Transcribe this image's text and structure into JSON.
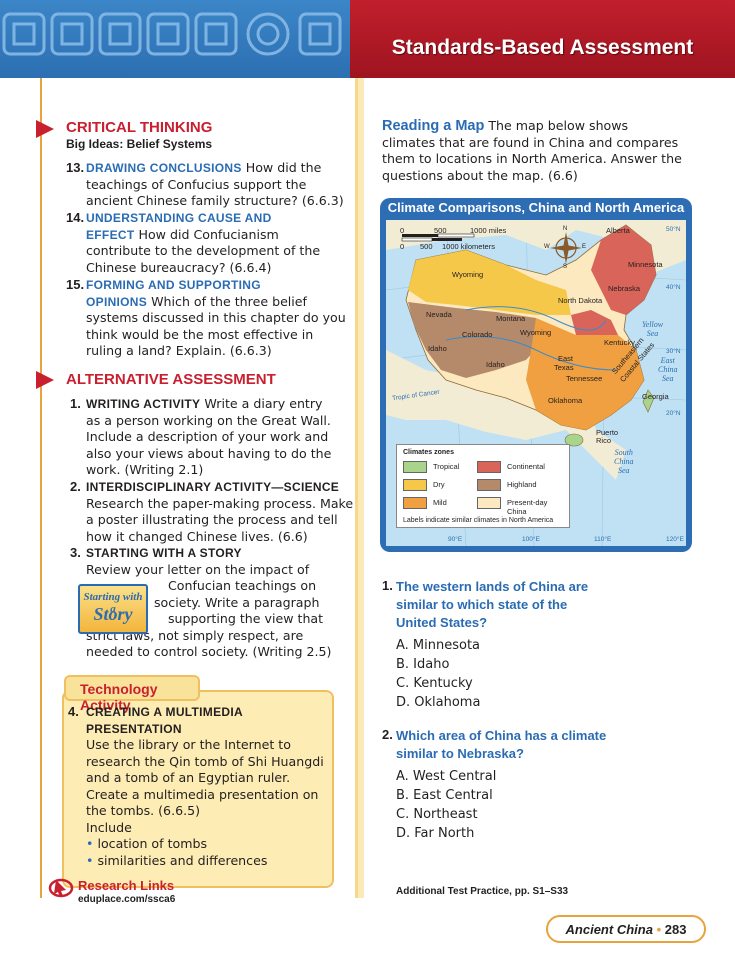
{
  "header": {
    "title": "Standards-Based Assessment"
  },
  "critical_thinking": {
    "heading": "CRITICAL THINKING",
    "subheading": "Big Ideas: Belief Systems",
    "items": [
      {
        "num": "13.",
        "keyword": "DRAWING CONCLUSIONS",
        "text_lines": [
          "How did the",
          "teachings of Confucius support the",
          "ancient Chinese family structure? (6.6.3)"
        ]
      },
      {
        "num": "14.",
        "keyword_line1": "UNDERSTANDING CAUSE AND",
        "keyword_line2": "EFFECT",
        "text_lines": [
          "How did Confucianism",
          "contribute to the development of the",
          "Chinese bureaucracy? (6.6.4)"
        ]
      },
      {
        "num": "15.",
        "keyword_line1": "FORMING AND SUPPORTING",
        "keyword_line2": "OPINIONS",
        "text_lines": [
          "Which of the three belief",
          "systems discussed in this chapter do you",
          "think would be the most effective in",
          "ruling a land? Explain. (6.6.3)"
        ]
      }
    ]
  },
  "alternative_assessment": {
    "heading": "ALTERNATIVE ASSESSMENT",
    "items": [
      {
        "num": "1.",
        "keyword": "WRITING ACTIVITY",
        "text_lines": [
          "Write a diary entry",
          "as a person working on the Great Wall.",
          "Include a description of your work and",
          "also your views about having to do the",
          "work. (Writing 2.1)"
        ]
      },
      {
        "num": "2.",
        "keyword": "INTERDISCIPLINARY ACTIVITY—SCIENCE",
        "text_lines": [
          "Research the paper-making process. Make",
          "a poster illustrating the process and tell",
          "how it changed Chinese lives. (6.6)"
        ]
      },
      {
        "num": "3.",
        "keyword": "STARTING WITH A STORY",
        "text_lines": [
          "Review your letter on the impact of",
          "Confucian teachings on",
          "society. Write a paragraph",
          "supporting the view that",
          "strict laws, not simply respect, are",
          "needed to control society. (Writing 2.5)"
        ]
      }
    ],
    "badge_small": "Starting with a",
    "badge_big": "Story"
  },
  "technology": {
    "tab": "Technology Activity",
    "num": "4.",
    "keyword_line1": "CREATING A MULTIMEDIA",
    "keyword_line2": "PRESENTATION",
    "text_lines": [
      "Use the library or the Internet to",
      "research the Qin tomb of Shi Huangdi",
      "and a tomb of an Egyptian ruler.",
      "Create a multimedia presentation on",
      "the tombs.  (6.6.5)",
      "Include"
    ],
    "bullets": [
      "location of tombs",
      "similarities and differences"
    ]
  },
  "research_links": {
    "label": "Research Links",
    "url": "eduplace.com/ssca6"
  },
  "reading_map": {
    "keyword": "Reading a Map",
    "text_lines": [
      "The map below shows",
      "climates that are found in China and compares",
      "them to locations in North America. Answer the",
      "questions about the map. (6.6)"
    ]
  },
  "map": {
    "title": "Climate Comparisons, China and North America",
    "scale_miles": [
      "0",
      "500",
      "1000 miles"
    ],
    "scale_km": [
      "0",
      "500",
      "1000 kilometers"
    ],
    "compass": [
      "N",
      "S",
      "E",
      "W"
    ],
    "labels": {
      "alberta": "Alberta",
      "minnesota": "Minnesota",
      "wyoming1": "Wyoming",
      "nebraska": "Nebraska",
      "north_dakota": "North Dakota",
      "nevada": "Nevada",
      "montana": "Montana",
      "colorado": "Colorado",
      "wyoming2": "Wyoming",
      "idaho1": "Idaho",
      "kentucky": "Kentucky",
      "east_texas_1": "East",
      "east_texas_2": "Texas",
      "idaho2": "Idaho",
      "tennessee": "Tennessee",
      "southeastern_1": "Southeastern",
      "southeastern_2": "Coastal States",
      "georgia": "Georgia",
      "oklahoma": "Oklahoma",
      "puerto_rico_1": "Puerto",
      "puerto_rico_2": "Rico"
    },
    "seas": {
      "yellow_1": "Yellow",
      "yellow_2": "Sea",
      "east_china_1": "East",
      "east_china_2": "China",
      "east_china_3": "Sea",
      "south_china_1": "South",
      "south_china_2": "China",
      "south_china_3": "Sea"
    },
    "latitudes": {
      "lat50": "50°N",
      "lat40": "40°N",
      "lat30": "30°N",
      "lat20": "20°N",
      "tropic": "Tropic of Cancer",
      "lon90": "90°E",
      "lon100": "100°E",
      "lon110": "110°E",
      "lon120": "120°E"
    },
    "legend": {
      "title": "Climates zones",
      "entries": [
        {
          "label": "Tropical",
          "color": "#a8d48c"
        },
        {
          "label": "Continental",
          "color": "#d9645a"
        },
        {
          "label": "Dry",
          "color": "#f6c84a"
        },
        {
          "label": "Highland",
          "color": "#b58a6a"
        },
        {
          "label": "Mild",
          "color": "#f0a040"
        },
        {
          "label": "Present-day China",
          "color": "#fde9bf"
        }
      ],
      "note": "Labels indicate similar climates in North America"
    }
  },
  "questions": [
    {
      "num": "1.",
      "text_lines": [
        "The western lands of China are",
        "similar to which state of the",
        "United States?"
      ],
      "options": [
        "A. Minnesota",
        "B. Idaho",
        "C. Kentucky",
        "D. Oklahoma"
      ]
    },
    {
      "num": "2.",
      "text_lines": [
        "Which  area of China has a climate",
        "similar to Nebraska?"
      ],
      "options": [
        "A. West Central",
        "B. East Central",
        "C. Northeast",
        "D. Far North"
      ]
    }
  ],
  "additional_practice": "Additional Test Practice, pp. S1–S33",
  "footer": {
    "chapter": "Ancient China",
    "separator": "•",
    "page": "283"
  },
  "colors": {
    "accent_blue": "#2a6cb4",
    "accent_red": "#c8202f",
    "accent_gold": "#e8a33c"
  }
}
